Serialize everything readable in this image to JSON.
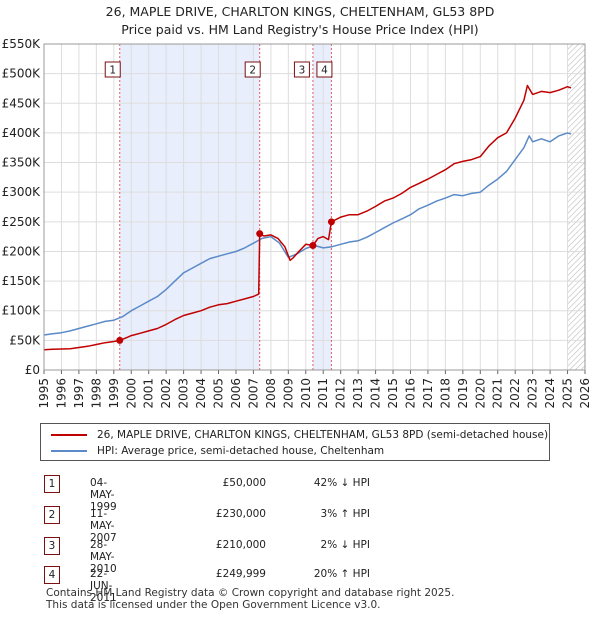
{
  "colors": {
    "property": "#c00000",
    "hpi": "#5b8ac8",
    "shade": "#e8eefb",
    "vline": "#e06060",
    "grid": "#dddddd",
    "badge_border": "#7a1010"
  },
  "chart_data": {
    "type": "line",
    "title": "26, MAPLE DRIVE, CHARLTON KINGS, CHELTENHAM, GL53 8PD",
    "subtitle": "Price paid vs. HM Land Registry's House Price Index (HPI)",
    "xlim": [
      1995,
      2026
    ],
    "ylim": [
      0,
      550000
    ],
    "x_ticks": [
      "1995",
      "1996",
      "1997",
      "1998",
      "1999",
      "2000",
      "2001",
      "2002",
      "2003",
      "2004",
      "2005",
      "2006",
      "2007",
      "2008",
      "2009",
      "2010",
      "2011",
      "2012",
      "2013",
      "2014",
      "2015",
      "2016",
      "2017",
      "2018",
      "2019",
      "2020",
      "2021",
      "2022",
      "2023",
      "2024",
      "2025",
      "2026"
    ],
    "y_ticks": [
      {
        "value": 0,
        "label": "£0"
      },
      {
        "value": 50000,
        "label": "£50K"
      },
      {
        "value": 100000,
        "label": "£100K"
      },
      {
        "value": 150000,
        "label": "£150K"
      },
      {
        "value": 200000,
        "label": "£200K"
      },
      {
        "value": 250000,
        "label": "£250K"
      },
      {
        "value": 300000,
        "label": "£300K"
      },
      {
        "value": 350000,
        "label": "£350K"
      },
      {
        "value": 400000,
        "label": "£400K"
      },
      {
        "value": 450000,
        "label": "£450K"
      },
      {
        "value": 500000,
        "label": "£500K"
      },
      {
        "value": 550000,
        "label": "£550K"
      }
    ],
    "shaded_ranges": [
      [
        1999.34,
        2007.36
      ],
      [
        2010.41,
        2011.47
      ]
    ],
    "future_hatch_from": 2025.0,
    "series": [
      {
        "name": "26, MAPLE DRIVE, CHARLTON KINGS, CHELTENHAM, GL53 8PD (semi-detached house)",
        "color_key": "property",
        "points": [
          [
            1995.0,
            34000
          ],
          [
            1995.5,
            35000
          ],
          [
            1996.0,
            35500
          ],
          [
            1996.5,
            36000
          ],
          [
            1997.0,
            38000
          ],
          [
            1997.5,
            40000
          ],
          [
            1998.0,
            43000
          ],
          [
            1998.5,
            46000
          ],
          [
            1999.0,
            48000
          ],
          [
            1999.34,
            50000
          ],
          [
            1999.6,
            53000
          ],
          [
            2000.0,
            58000
          ],
          [
            2000.5,
            62000
          ],
          [
            2001.0,
            66000
          ],
          [
            2001.5,
            70000
          ],
          [
            2002.0,
            77000
          ],
          [
            2002.5,
            85000
          ],
          [
            2003.0,
            92000
          ],
          [
            2003.5,
            96000
          ],
          [
            2004.0,
            100000
          ],
          [
            2004.5,
            106000
          ],
          [
            2005.0,
            110000
          ],
          [
            2005.5,
            112000
          ],
          [
            2006.0,
            116000
          ],
          [
            2006.5,
            120000
          ],
          [
            2007.0,
            124000
          ],
          [
            2007.3,
            128000
          ],
          [
            2007.36,
            230000
          ],
          [
            2007.6,
            226000
          ],
          [
            2008.0,
            228000
          ],
          [
            2008.4,
            222000
          ],
          [
            2008.8,
            208000
          ],
          [
            2009.1,
            185000
          ],
          [
            2009.3,
            190000
          ],
          [
            2009.6,
            200000
          ],
          [
            2010.0,
            212000
          ],
          [
            2010.41,
            210000
          ],
          [
            2010.7,
            222000
          ],
          [
            2011.0,
            225000
          ],
          [
            2011.3,
            220000
          ],
          [
            2011.47,
            249999
          ],
          [
            2011.8,
            255000
          ],
          [
            2012.0,
            258000
          ],
          [
            2012.5,
            262000
          ],
          [
            2013.0,
            262000
          ],
          [
            2013.5,
            268000
          ],
          [
            2014.0,
            276000
          ],
          [
            2014.5,
            285000
          ],
          [
            2015.0,
            290000
          ],
          [
            2015.5,
            298000
          ],
          [
            2016.0,
            308000
          ],
          [
            2016.5,
            315000
          ],
          [
            2017.0,
            322000
          ],
          [
            2017.5,
            330000
          ],
          [
            2018.0,
            338000
          ],
          [
            2018.5,
            348000
          ],
          [
            2019.0,
            352000
          ],
          [
            2019.5,
            355000
          ],
          [
            2020.0,
            360000
          ],
          [
            2020.5,
            378000
          ],
          [
            2021.0,
            392000
          ],
          [
            2021.5,
            400000
          ],
          [
            2022.0,
            425000
          ],
          [
            2022.5,
            455000
          ],
          [
            2022.7,
            480000
          ],
          [
            2023.0,
            465000
          ],
          [
            2023.5,
            470000
          ],
          [
            2024.0,
            468000
          ],
          [
            2024.5,
            472000
          ],
          [
            2025.0,
            478000
          ],
          [
            2025.2,
            476000
          ]
        ]
      },
      {
        "name": "HPI: Average price, semi-detached house, Cheltenham",
        "color_key": "hpi",
        "points": [
          [
            1995.0,
            59000
          ],
          [
            1995.5,
            61000
          ],
          [
            1996.0,
            63000
          ],
          [
            1996.5,
            66000
          ],
          [
            1997.0,
            70000
          ],
          [
            1997.5,
            74000
          ],
          [
            1998.0,
            78000
          ],
          [
            1998.5,
            82000
          ],
          [
            1999.0,
            84000
          ],
          [
            1999.5,
            90000
          ],
          [
            2000.0,
            100000
          ],
          [
            2000.5,
            108000
          ],
          [
            2001.0,
            116000
          ],
          [
            2001.5,
            124000
          ],
          [
            2002.0,
            136000
          ],
          [
            2002.5,
            150000
          ],
          [
            2003.0,
            164000
          ],
          [
            2003.5,
            172000
          ],
          [
            2004.0,
            180000
          ],
          [
            2004.5,
            188000
          ],
          [
            2005.0,
            192000
          ],
          [
            2005.5,
            196000
          ],
          [
            2006.0,
            200000
          ],
          [
            2006.5,
            206000
          ],
          [
            2007.0,
            214000
          ],
          [
            2007.5,
            222000
          ],
          [
            2008.0,
            225000
          ],
          [
            2008.5,
            214000
          ],
          [
            2009.0,
            190000
          ],
          [
            2009.5,
            196000
          ],
          [
            2010.0,
            205000
          ],
          [
            2010.5,
            210000
          ],
          [
            2011.0,
            206000
          ],
          [
            2011.5,
            208000
          ],
          [
            2012.0,
            212000
          ],
          [
            2012.5,
            216000
          ],
          [
            2013.0,
            218000
          ],
          [
            2013.5,
            224000
          ],
          [
            2014.0,
            232000
          ],
          [
            2014.5,
            240000
          ],
          [
            2015.0,
            248000
          ],
          [
            2015.5,
            255000
          ],
          [
            2016.0,
            262000
          ],
          [
            2016.5,
            272000
          ],
          [
            2017.0,
            278000
          ],
          [
            2017.5,
            285000
          ],
          [
            2018.0,
            290000
          ],
          [
            2018.5,
            296000
          ],
          [
            2019.0,
            294000
          ],
          [
            2019.5,
            298000
          ],
          [
            2020.0,
            300000
          ],
          [
            2020.5,
            312000
          ],
          [
            2021.0,
            322000
          ],
          [
            2021.5,
            335000
          ],
          [
            2022.0,
            355000
          ],
          [
            2022.5,
            375000
          ],
          [
            2022.8,
            395000
          ],
          [
            2023.0,
            385000
          ],
          [
            2023.5,
            390000
          ],
          [
            2024.0,
            385000
          ],
          [
            2024.5,
            395000
          ],
          [
            2025.0,
            400000
          ],
          [
            2025.2,
            398000
          ]
        ]
      }
    ],
    "transactions": [
      {
        "label": "1",
        "x": 1999.34,
        "value": 50000
      },
      {
        "label": "2",
        "x": 2007.36,
        "value": 230000
      },
      {
        "label": "3",
        "x": 2010.41,
        "value": 210000
      },
      {
        "label": "4",
        "x": 2011.47,
        "value": 249999
      }
    ]
  },
  "legend": {
    "property": "26, MAPLE DRIVE, CHARLTON KINGS, CHELTENHAM, GL53 8PD (semi-detached house)",
    "hpi": "HPI: Average price, semi-detached house, Cheltenham"
  },
  "table": [
    {
      "num": "1",
      "date": "04-MAY-1999",
      "price": "£50,000",
      "hpi": "42% ↓ HPI"
    },
    {
      "num": "2",
      "date": "11-MAY-2007",
      "price": "£230,000",
      "hpi": "3% ↑ HPI"
    },
    {
      "num": "3",
      "date": "28-MAY-2010",
      "price": "£210,000",
      "hpi": "2% ↓ HPI"
    },
    {
      "num": "4",
      "date": "22-JUN-2011",
      "price": "£249,999",
      "hpi": "20% ↑ HPI"
    }
  ],
  "footer": {
    "line1": "Contains HM Land Registry data © Crown copyright and database right 2025.",
    "line2": "This data is licensed under the Open Government Licence v3.0."
  }
}
